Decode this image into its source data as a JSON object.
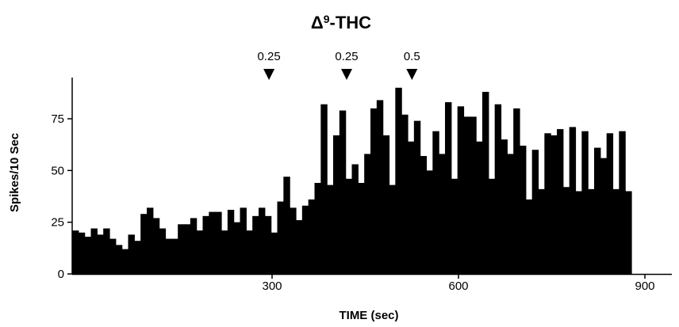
{
  "chart_data": {
    "type": "bar",
    "title": {
      "delta": "Δ",
      "superscript": "9",
      "rest": "-THC"
    },
    "xlabel": "TIME (sec)",
    "ylabel": "Spikes/10 Sec",
    "xlim": [
      0,
      930
    ],
    "ylim": [
      0,
      90
    ],
    "bin_width_sec": 10,
    "x_ticks": [
      {
        "value": 300,
        "label": "300"
      },
      {
        "value": 600,
        "label": "600"
      },
      {
        "value": 900,
        "label": "900"
      }
    ],
    "y_ticks": [
      {
        "value": 0,
        "label": "0"
      },
      {
        "value": 25,
        "label": "25"
      },
      {
        "value": 50,
        "label": "50"
      },
      {
        "value": 75,
        "label": "75"
      }
    ],
    "annotations": [
      {
        "x": 295,
        "label": "0.25",
        "marker": "down-triangle"
      },
      {
        "x": 420,
        "label": "0.25",
        "marker": "down-triangle"
      },
      {
        "x": 525,
        "label": "0.5",
        "marker": "down-triangle"
      }
    ],
    "values": [
      21,
      20,
      18,
      22,
      19,
      22,
      17,
      14,
      12,
      19,
      16,
      29,
      32,
      27,
      22,
      17,
      17,
      24,
      24,
      27,
      21,
      28,
      30,
      30,
      21,
      31,
      25,
      32,
      21,
      28,
      32,
      28,
      20,
      35,
      47,
      32,
      26,
      33,
      36,
      44,
      82,
      43,
      67,
      79,
      46,
      53,
      44,
      58,
      80,
      84,
      67,
      43,
      90,
      77,
      64,
      74,
      57,
      50,
      69,
      58,
      83,
      46,
      81,
      76,
      76,
      64,
      88,
      46,
      82,
      65,
      58,
      80,
      62,
      36,
      60,
      41,
      68,
      67,
      70,
      42,
      71,
      40,
      69,
      41,
      61,
      56,
      68,
      41,
      69,
      40
    ]
  }
}
